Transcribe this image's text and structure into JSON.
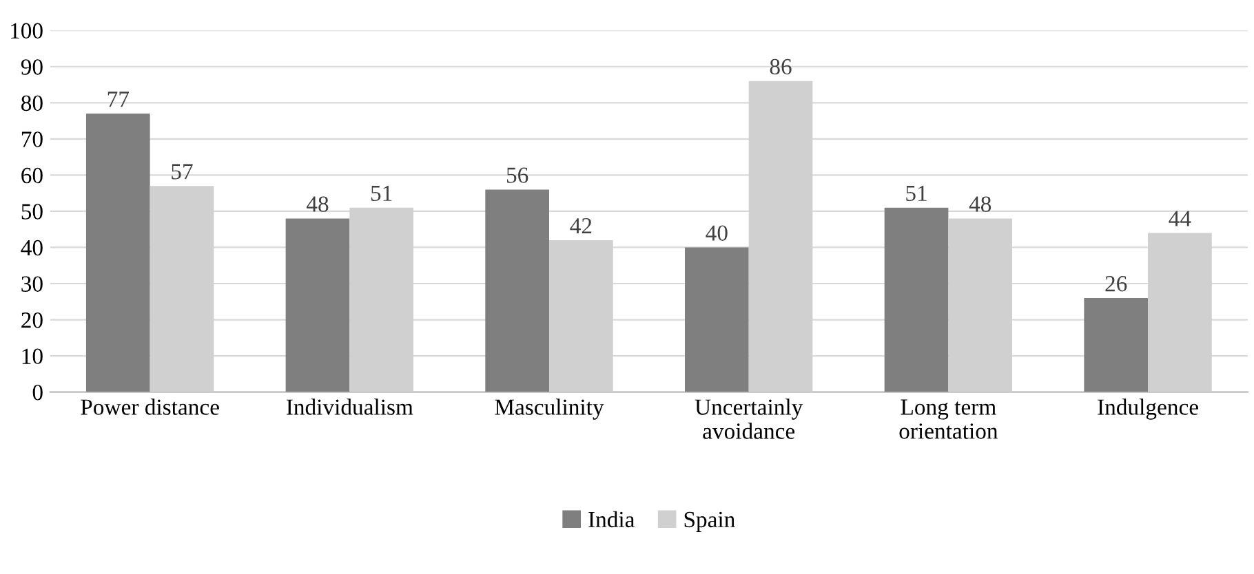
{
  "chart_data": {
    "type": "bar",
    "categories": [
      "Power distance",
      "Individualism",
      "Masculinity",
      "Uncertainly\navoidance",
      "Long term\norientation",
      "Indulgence"
    ],
    "series": [
      {
        "name": "India",
        "color": "#7f7f7f",
        "values": [
          77,
          48,
          56,
          40,
          51,
          26
        ]
      },
      {
        "name": "Spain",
        "color": "#d0d0d0",
        "values": [
          57,
          51,
          42,
          86,
          48,
          44
        ]
      }
    ],
    "ylim": [
      0,
      100
    ],
    "yticks": [
      0,
      10,
      20,
      30,
      40,
      50,
      60,
      70,
      80,
      90,
      100
    ],
    "grid": "y",
    "legend": "bottom",
    "data_labels": true
  }
}
